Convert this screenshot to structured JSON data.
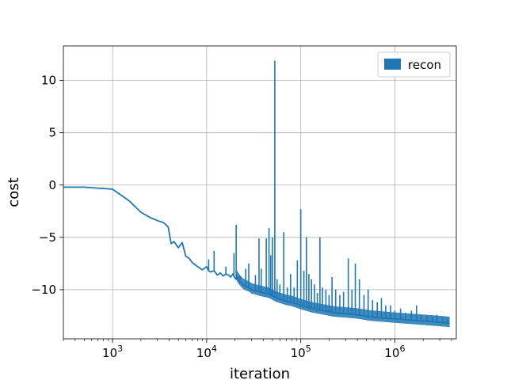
{
  "chart_data": {
    "type": "line",
    "title": "",
    "xlabel": "iteration",
    "ylabel": "cost",
    "xscale": "log",
    "xlim": [
      300,
      4500000
    ],
    "ylim": [
      -14.7,
      13.3
    ],
    "grid": true,
    "legend_position": "top-right",
    "x_ticks": [
      {
        "value": 1000,
        "base": "10",
        "exp": "3"
      },
      {
        "value": 10000,
        "base": "10",
        "exp": "4"
      },
      {
        "value": 100000,
        "base": "10",
        "exp": "5"
      },
      {
        "value": 1000000,
        "base": "10",
        "exp": "6"
      }
    ],
    "y_ticks": [
      {
        "value": 10,
        "label": "10"
      },
      {
        "value": 5,
        "label": "5"
      },
      {
        "value": 0,
        "label": "0"
      },
      {
        "value": -5,
        "label": "−5"
      },
      {
        "value": -10,
        "label": "−10"
      }
    ],
    "series": [
      {
        "name": "recon",
        "color": "#1f77b4",
        "x": [
          300,
          500,
          1000,
          1500,
          2000,
          2500,
          3000,
          3500,
          3900,
          4200,
          4500,
          5000,
          5500,
          6000,
          6500,
          7000,
          8000,
          9000,
          10000,
          10500,
          11000,
          12000,
          13000,
          14000,
          15000,
          16000,
          17000,
          18000,
          19000,
          20000,
          20500,
          21000,
          22000,
          24000,
          26000,
          28000,
          30000,
          33000,
          36000,
          40000,
          45000,
          50000,
          55000,
          60000,
          70000,
          80000,
          100000,
          130000,
          170000,
          220000,
          300000,
          400000,
          550000,
          750000,
          1000000,
          1400000,
          2000000,
          2800000,
          3800000
        ],
        "y": [
          -0.2,
          -0.2,
          -0.4,
          -1.5,
          -2.6,
          -3.1,
          -3.4,
          -3.6,
          -4.0,
          -5.6,
          -5.4,
          -6.0,
          -5.5,
          -6.8,
          -7.0,
          -7.4,
          -7.8,
          -8.1,
          -7.8,
          -8.2,
          -8.3,
          -8.2,
          -8.6,
          -8.4,
          -8.7,
          -8.5,
          -8.6,
          -8.8,
          -8.5,
          -8.9,
          -9.0,
          -8.8,
          -9.1,
          -9.5,
          -9.7,
          -9.8,
          -10.0,
          -10.1,
          -10.2,
          -10.3,
          -10.4,
          -10.6,
          -10.8,
          -10.9,
          -11.1,
          -11.2,
          -11.5,
          -11.8,
          -12.0,
          -12.2,
          -12.3,
          -12.4,
          -12.6,
          -12.7,
          -12.8,
          -12.9,
          -13.0,
          -13.1,
          -13.2
        ],
        "spikes": [
          {
            "x": 10500,
            "y": -7.1
          },
          {
            "x": 12000,
            "y": -6.3
          },
          {
            "x": 16000,
            "y": -7.8
          },
          {
            "x": 19500,
            "y": -6.5
          },
          {
            "x": 20600,
            "y": -3.8
          },
          {
            "x": 22500,
            "y": -8.7
          },
          {
            "x": 26000,
            "y": -8.0
          },
          {
            "x": 28000,
            "y": -7.5
          },
          {
            "x": 33000,
            "y": -8.6
          },
          {
            "x": 36000,
            "y": -5.1
          },
          {
            "x": 38000,
            "y": -8.0
          },
          {
            "x": 43000,
            "y": -5.1
          },
          {
            "x": 46000,
            "y": -4.1
          },
          {
            "x": 48000,
            "y": -6.7
          },
          {
            "x": 50000,
            "y": -5.0
          },
          {
            "x": 53000,
            "y": 11.9
          },
          {
            "x": 56000,
            "y": -9.0
          },
          {
            "x": 60000,
            "y": -9.5
          },
          {
            "x": 66000,
            "y": -4.5
          },
          {
            "x": 72000,
            "y": -9.8
          },
          {
            "x": 78000,
            "y": -8.5
          },
          {
            "x": 85000,
            "y": -9.8
          },
          {
            "x": 92000,
            "y": -7.2
          },
          {
            "x": 100000,
            "y": -2.3
          },
          {
            "x": 108000,
            "y": -8.2
          },
          {
            "x": 115000,
            "y": -5.0
          },
          {
            "x": 122000,
            "y": -8.5
          },
          {
            "x": 130000,
            "y": -9.0
          },
          {
            "x": 140000,
            "y": -9.5
          },
          {
            "x": 150000,
            "y": -10.3
          },
          {
            "x": 160000,
            "y": -5.0
          },
          {
            "x": 170000,
            "y": -9.8
          },
          {
            "x": 185000,
            "y": -10.0
          },
          {
            "x": 200000,
            "y": -10.5
          },
          {
            "x": 215000,
            "y": -8.8
          },
          {
            "x": 235000,
            "y": -10.0
          },
          {
            "x": 260000,
            "y": -10.5
          },
          {
            "x": 285000,
            "y": -10.2
          },
          {
            "x": 320000,
            "y": -7.0
          },
          {
            "x": 350000,
            "y": -10.0
          },
          {
            "x": 380000,
            "y": -7.5
          },
          {
            "x": 420000,
            "y": -9.0
          },
          {
            "x": 470000,
            "y": -10.5
          },
          {
            "x": 520000,
            "y": -10.0
          },
          {
            "x": 580000,
            "y": -11.0
          },
          {
            "x": 650000,
            "y": -11.2
          },
          {
            "x": 720000,
            "y": -10.8
          },
          {
            "x": 800000,
            "y": -11.5
          },
          {
            "x": 900000,
            "y": -11.5
          },
          {
            "x": 1000000,
            "y": -12.0
          },
          {
            "x": 1150000,
            "y": -11.8
          },
          {
            "x": 1300000,
            "y": -12.2
          },
          {
            "x": 1500000,
            "y": -12.0
          },
          {
            "x": 1700000,
            "y": -11.5
          },
          {
            "x": 1900000,
            "y": -12.5
          },
          {
            "x": 2200000,
            "y": -12.5
          },
          {
            "x": 2500000,
            "y": -12.6
          },
          {
            "x": 2800000,
            "y": -12.4
          },
          {
            "x": 3200000,
            "y": -12.6
          },
          {
            "x": 3600000,
            "y": -12.8
          }
        ]
      }
    ]
  }
}
